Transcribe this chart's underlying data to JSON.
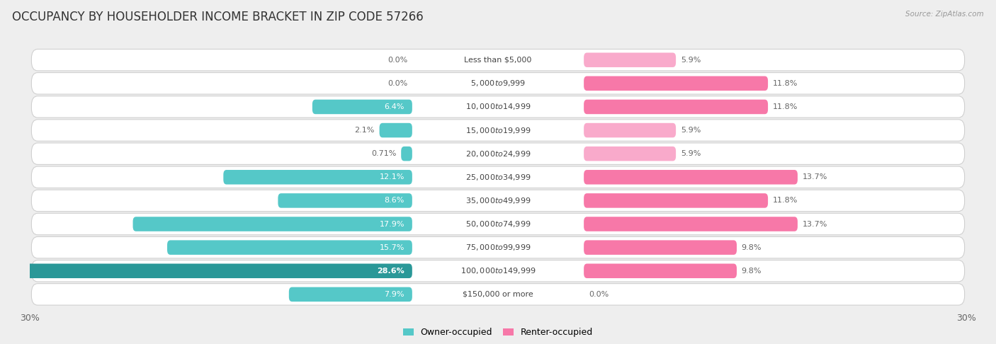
{
  "title": "OCCUPANCY BY HOUSEHOLDER INCOME BRACKET IN ZIP CODE 57266",
  "source": "Source: ZipAtlas.com",
  "categories": [
    "Less than $5,000",
    "$5,000 to $9,999",
    "$10,000 to $14,999",
    "$15,000 to $19,999",
    "$20,000 to $24,999",
    "$25,000 to $34,999",
    "$35,000 to $49,999",
    "$50,000 to $74,999",
    "$75,000 to $99,999",
    "$100,000 to $149,999",
    "$150,000 or more"
  ],
  "owner_values": [
    0.0,
    0.0,
    6.4,
    2.1,
    0.71,
    12.1,
    8.6,
    17.9,
    15.7,
    28.6,
    7.9
  ],
  "renter_values": [
    5.9,
    11.8,
    11.8,
    5.9,
    5.9,
    13.7,
    11.8,
    13.7,
    9.8,
    9.8,
    0.0
  ],
  "owner_color": "#55C8C8",
  "owner_color_dark": "#2A9898",
  "renter_color": "#F778A8",
  "renter_color_light": "#F9AACB",
  "background_color": "#eeeeee",
  "row_color": "#ffffff",
  "axis_limit": 30.0,
  "legend_labels": [
    "Owner-occupied",
    "Renter-occupied"
  ],
  "title_fontsize": 12,
  "label_fontsize": 8,
  "category_fontsize": 8,
  "source_fontsize": 7.5
}
